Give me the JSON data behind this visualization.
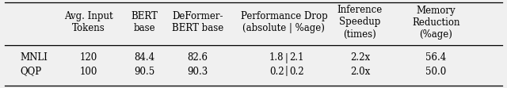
{
  "col_headers": [
    "Avg. Input\nTokens",
    "BERT\nbase",
    "DeFormer-\nBERT base",
    "Performance Drop\n(absolute | %age)",
    "Inference\nSpeedup\n(times)",
    "Memory\nReduction\n(%age)"
  ],
  "row_labels": [
    "MNLI",
    "QQP"
  ],
  "rows": [
    [
      "120",
      "84.4",
      "82.6",
      "1.8",
      "2.1",
      "2.2x",
      "56.4"
    ],
    [
      "100",
      "90.5",
      "90.3",
      "0.2",
      "0.2",
      "2.0x",
      "50.0"
    ]
  ],
  "background_color": "#f0f0f0",
  "fontsize": 8.5
}
